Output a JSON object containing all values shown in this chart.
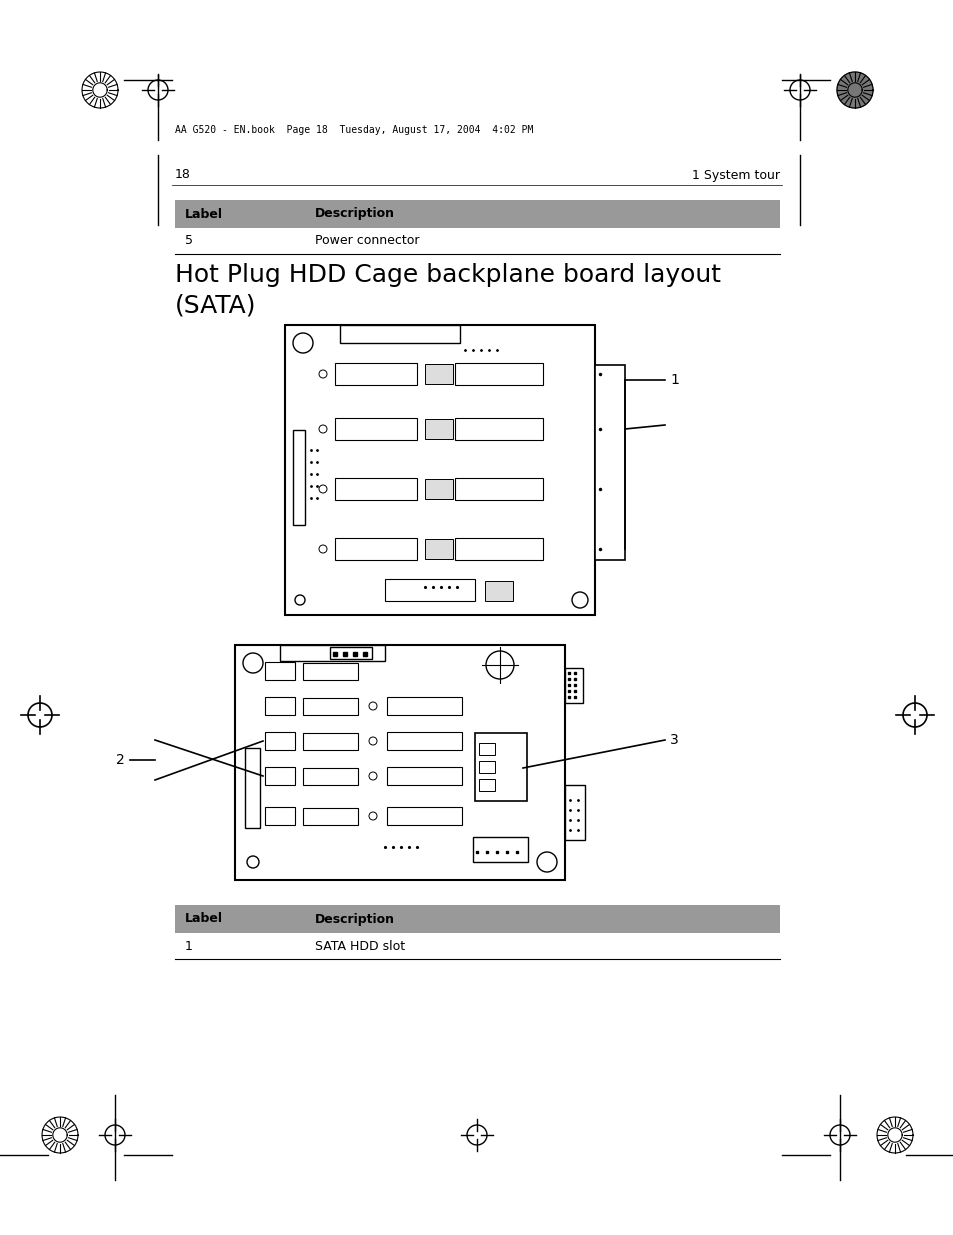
{
  "bg_color": "#ffffff",
  "page_header_text": "AA G520 - EN.book  Page 18  Tuesday, August 17, 2004  4:02 PM",
  "page_num_left": "18",
  "page_num_right": "1 System tour",
  "table1_header": [
    "Label",
    "Description"
  ],
  "table1_rows": [
    [
      "5",
      "Power connector"
    ]
  ],
  "section_title_line1": "Hot Plug HDD Cage backplane board layout",
  "section_title_line2": "(SATA)",
  "table2_header": [
    "Label",
    "Description"
  ],
  "table2_rows": [
    [
      "1",
      "SATA HDD slot"
    ]
  ],
  "header_bg": "#999999",
  "label1": "1",
  "label2": "2",
  "label3": "3",
  "label_fontsize": 10,
  "title_fontsize": 18,
  "body_fontsize": 9,
  "header_fontsize": 9
}
